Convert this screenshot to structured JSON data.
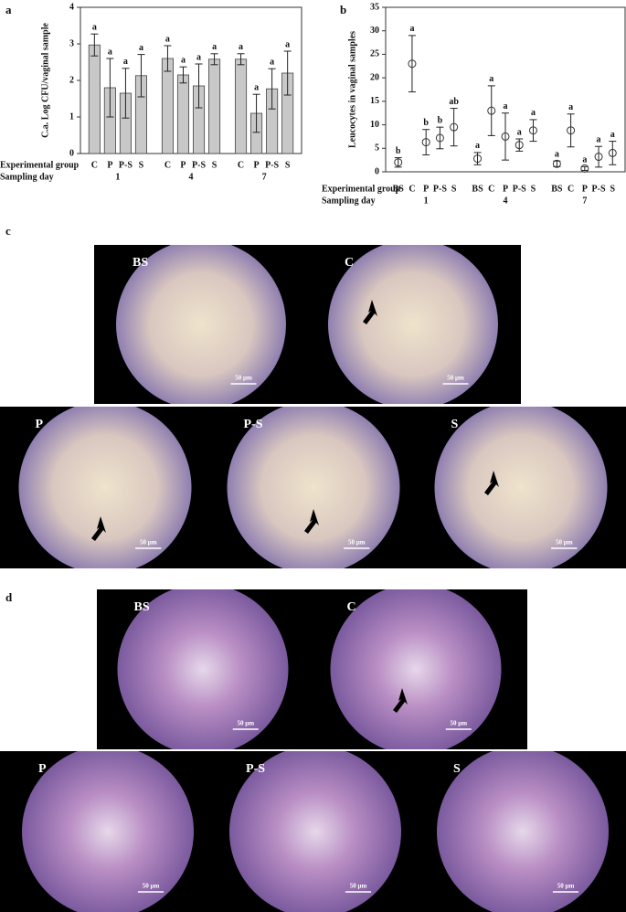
{
  "panel_labels": [
    "a",
    "b",
    "c",
    "d"
  ],
  "chart_data": [
    {
      "type": "bar",
      "y_label": "C.a. Log CFU/vaginal sample",
      "x_label": "Experimental group",
      "group_axis_label": "Sampling day",
      "group_labels": [
        "1",
        "4",
        "7"
      ],
      "categories": [
        "C",
        "P",
        "P-S",
        "S",
        "C",
        "P",
        "P-S",
        "S",
        "C",
        "P",
        "P-S",
        "S"
      ],
      "values": [
        2.97,
        1.8,
        1.65,
        2.13,
        2.6,
        2.15,
        1.85,
        2.58,
        2.58,
        1.1,
        1.77,
        2.2
      ],
      "errors": [
        0.3,
        0.8,
        0.68,
        0.58,
        0.35,
        0.22,
        0.6,
        0.15,
        0.15,
        0.52,
        0.55,
        0.6
      ],
      "annotations": [
        "a",
        "a",
        "a",
        "a",
        "a",
        "a",
        "a",
        "a",
        "a",
        "a",
        "a",
        "a"
      ],
      "color": "#c8c8c8",
      "ylim": [
        0,
        4
      ],
      "yticks": [
        0,
        1,
        2,
        3,
        4
      ]
    },
    {
      "type": "errorbar",
      "y_label": "Leucocytes in vaginal samples",
      "x_label": "Experimental group",
      "group_axis_label": "Sampling day",
      "group_labels": [
        "1",
        "4",
        "7"
      ],
      "categories": [
        "BS",
        "C",
        "P",
        "P-S",
        "S",
        "BS",
        "C",
        "P",
        "P-S",
        "S",
        "BS",
        "C",
        "P",
        "P-S",
        "S"
      ],
      "values": [
        2,
        23,
        6.3,
        7.2,
        9.5,
        2.8,
        13,
        7.5,
        5.7,
        8.8,
        1.7,
        8.8,
        0.7,
        3.2,
        4
      ],
      "errors": [
        1,
        6,
        2.7,
        2.3,
        4,
        1.3,
        5.3,
        5,
        1.3,
        2.3,
        0.6,
        3.5,
        0.4,
        2.2,
        2.5
      ],
      "annotations": [
        "b",
        "a",
        "b",
        "b",
        "ab",
        "a",
        "a",
        "a",
        "a",
        "a",
        "a",
        "a",
        "a",
        "a",
        "a"
      ],
      "color": "#333333",
      "ylim": [
        0,
        35
      ],
      "yticks": [
        0,
        5,
        10,
        15,
        20,
        25,
        30,
        35
      ]
    }
  ],
  "micrographs": [
    {
      "images": [
        {
          "label": "BS",
          "scale": "50 µm"
        },
        {
          "label": "C",
          "scale": "50 µm"
        },
        {
          "label": "P",
          "scale": "50 µm"
        },
        {
          "label": "P-S",
          "scale": "50 µm"
        },
        {
          "label": "S",
          "scale": "50 µm"
        }
      ]
    },
    {
      "images": [
        {
          "label": "BS",
          "scale": "50 µm"
        },
        {
          "label": "C",
          "scale": "50 µm"
        },
        {
          "label": "P",
          "scale": "50 µm"
        },
        {
          "label": "P-S",
          "scale": "50 µm"
        },
        {
          "label": "S",
          "scale": "50 µm"
        }
      ]
    }
  ]
}
